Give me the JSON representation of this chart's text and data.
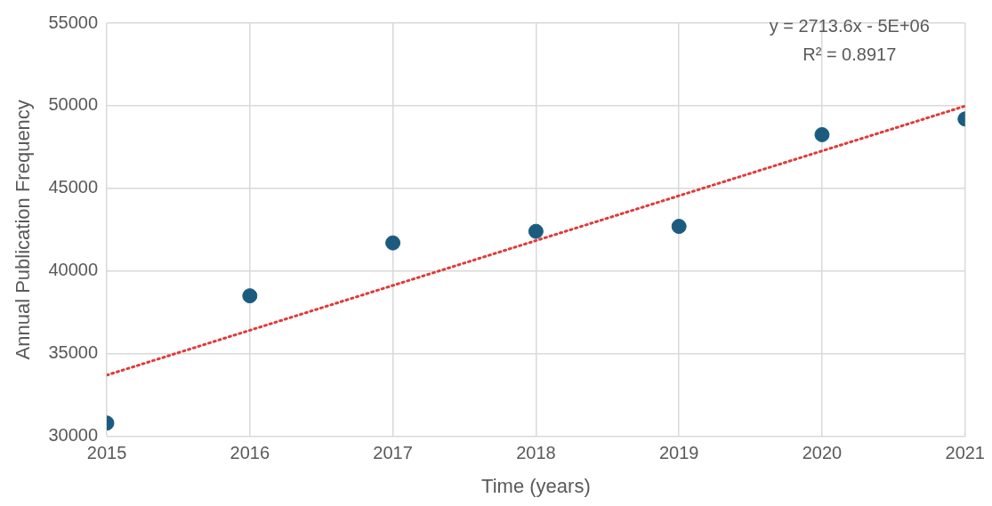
{
  "chart_data": {
    "type": "scatter",
    "xlabel": "Time (years)",
    "ylabel": "Annual Publication Frequency",
    "x": [
      2015,
      2016,
      2017,
      2018,
      2019,
      2020,
      2021
    ],
    "series": [
      {
        "type": "scatter",
        "color": "#1b5c7e",
        "marker": "circle",
        "values": [
          30800,
          38500,
          41700,
          42400,
          42700,
          48250,
          49200
        ]
      },
      {
        "type": "line",
        "color": "#e03a3a",
        "line_style": "dotted",
        "marker": "none",
        "x": [
          2015,
          2021
        ],
        "values": [
          33700,
          49980
        ]
      }
    ],
    "xlim": [
      2015,
      2021
    ],
    "xticks": [
      2015,
      2016,
      2017,
      2018,
      2019,
      2020,
      2021
    ],
    "ylim": [
      30000,
      55000
    ],
    "yticks": [
      30000,
      35000,
      40000,
      45000,
      50000,
      55000
    ],
    "grid": true,
    "annotations": [
      "y = 2713.6x - 5E+06",
      "R² = 0.8917"
    ]
  }
}
